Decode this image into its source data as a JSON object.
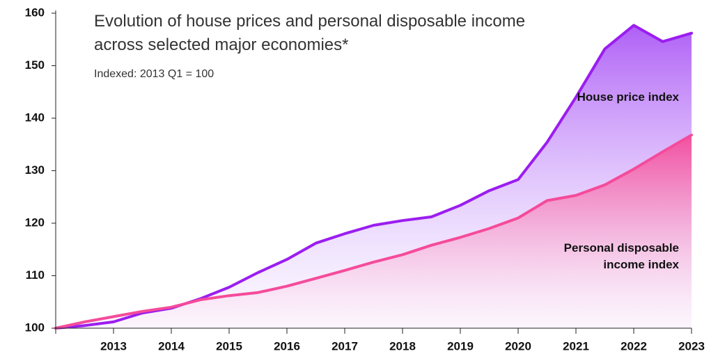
{
  "chart_data": {
    "type": "area",
    "title": "Evolution of house prices and personal disposable income across selected major economies*",
    "subtitle": "Indexed: 2013 Q1 = 100",
    "x": [
      2012,
      2012.5,
      2013,
      2013.5,
      2014,
      2014.5,
      2015,
      2015.5,
      2016,
      2016.5,
      2017,
      2017.5,
      2018,
      2018.5,
      2019,
      2019.5,
      2020,
      2020.5,
      2021,
      2021.5,
      2022,
      2022.5,
      2023
    ],
    "series": [
      {
        "name": "House price index",
        "color": "#9b1df0",
        "values": [
          100,
          100.5,
          101.2,
          102.9,
          103.8,
          105.6,
          107.8,
          110.6,
          113.1,
          116.2,
          118,
          119.6,
          120.5,
          121.2,
          123.4,
          126.2,
          128.3,
          135.4,
          144,
          153.2,
          157.7,
          154.6,
          156.2
        ]
      },
      {
        "name": "Personal disposable income index",
        "color": "#f54b9a",
        "values": [
          100,
          101.2,
          102.2,
          103.2,
          104,
          105.4,
          106.2,
          106.8,
          108,
          109.5,
          111,
          112.6,
          114,
          115.8,
          117.3,
          119,
          121,
          124.3,
          125.3,
          127.3,
          130.3,
          133.6,
          136.8
        ]
      }
    ],
    "xlim": [
      2012,
      2023
    ],
    "xticks": [
      2012,
      2013,
      2014,
      2015,
      2016,
      2017,
      2018,
      2019,
      2020,
      2021,
      2022,
      2023
    ],
    "xtick_labels": [
      null,
      "2013",
      "2014",
      "2015",
      "2016",
      "2017",
      "2018",
      "2019",
      "2020",
      "2021",
      "2022",
      "2023"
    ],
    "ylim": [
      100,
      160
    ],
    "yticks": [
      100,
      110,
      120,
      130,
      140,
      150,
      160
    ],
    "grid": false
  }
}
